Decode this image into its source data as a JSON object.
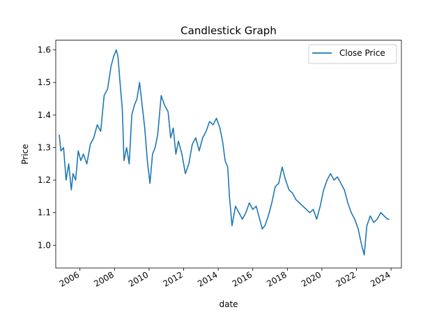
{
  "chart_data": {
    "type": "line",
    "title": "Candlestick Graph",
    "xlabel": "date",
    "ylabel": "Price",
    "x_ticks": [
      "2006",
      "2008",
      "2010",
      "2012",
      "2014",
      "2016",
      "2018",
      "2020",
      "2022",
      "2024"
    ],
    "y_ticks": [
      "1.0",
      "1.1",
      "1.2",
      "1.3",
      "1.4",
      "1.5",
      "1.6"
    ],
    "xlim": [
      2005.0,
      2025.0
    ],
    "ylim": [
      0.93,
      1.63
    ],
    "grid": false,
    "legend_position": "top-right",
    "series": [
      {
        "name": "Close Price",
        "color": "#1f77b4",
        "x": [
          2005.2,
          2005.3,
          2005.45,
          2005.6,
          2005.75,
          2005.9,
          2006.0,
          2006.15,
          2006.3,
          2006.45,
          2006.6,
          2006.8,
          2007.0,
          2007.2,
          2007.4,
          2007.6,
          2007.8,
          2008.0,
          2008.2,
          2008.35,
          2008.5,
          2008.6,
          2008.75,
          2008.85,
          2008.95,
          2009.1,
          2009.25,
          2009.4,
          2009.55,
          2009.7,
          2009.85,
          2010.0,
          2010.15,
          2010.3,
          2010.45,
          2010.6,
          2010.75,
          2010.9,
          2011.1,
          2011.3,
          2011.5,
          2011.65,
          2011.8,
          2011.95,
          2012.1,
          2012.3,
          2012.5,
          2012.7,
          2012.9,
          2013.1,
          2013.3,
          2013.5,
          2013.7,
          2013.9,
          2014.1,
          2014.3,
          2014.5,
          2014.65,
          2014.8,
          2014.95,
          2015.05,
          2015.2,
          2015.4,
          2015.6,
          2015.8,
          2016.0,
          2016.2,
          2016.4,
          2016.6,
          2016.8,
          2016.95,
          2017.1,
          2017.3,
          2017.5,
          2017.7,
          2017.9,
          2018.1,
          2018.3,
          2018.5,
          2018.7,
          2018.9,
          2019.1,
          2019.3,
          2019.5,
          2019.7,
          2019.9,
          2020.1,
          2020.3,
          2020.5,
          2020.7,
          2020.9,
          2021.1,
          2021.3,
          2021.5,
          2021.7,
          2021.9,
          2022.1,
          2022.3,
          2022.5,
          2022.7,
          2022.85,
          2023.0,
          2023.2,
          2023.4,
          2023.6,
          2023.8,
          2024.0,
          2024.2,
          2024.3
        ],
        "values": [
          1.34,
          1.29,
          1.3,
          1.2,
          1.25,
          1.17,
          1.22,
          1.2,
          1.29,
          1.26,
          1.28,
          1.25,
          1.31,
          1.33,
          1.37,
          1.35,
          1.46,
          1.48,
          1.55,
          1.58,
          1.6,
          1.58,
          1.48,
          1.42,
          1.26,
          1.3,
          1.25,
          1.4,
          1.43,
          1.45,
          1.5,
          1.43,
          1.36,
          1.26,
          1.19,
          1.28,
          1.3,
          1.34,
          1.46,
          1.43,
          1.41,
          1.33,
          1.36,
          1.28,
          1.32,
          1.28,
          1.22,
          1.25,
          1.31,
          1.33,
          1.29,
          1.33,
          1.35,
          1.38,
          1.37,
          1.39,
          1.36,
          1.32,
          1.26,
          1.24,
          1.15,
          1.06,
          1.12,
          1.1,
          1.08,
          1.1,
          1.13,
          1.11,
          1.12,
          1.08,
          1.05,
          1.06,
          1.09,
          1.13,
          1.18,
          1.19,
          1.24,
          1.2,
          1.17,
          1.16,
          1.14,
          1.13,
          1.12,
          1.11,
          1.1,
          1.11,
          1.08,
          1.12,
          1.17,
          1.2,
          1.22,
          1.2,
          1.21,
          1.19,
          1.17,
          1.13,
          1.1,
          1.08,
          1.05,
          1.0,
          0.97,
          1.06,
          1.09,
          1.07,
          1.08,
          1.1,
          1.09,
          1.08,
          1.08
        ]
      }
    ]
  }
}
